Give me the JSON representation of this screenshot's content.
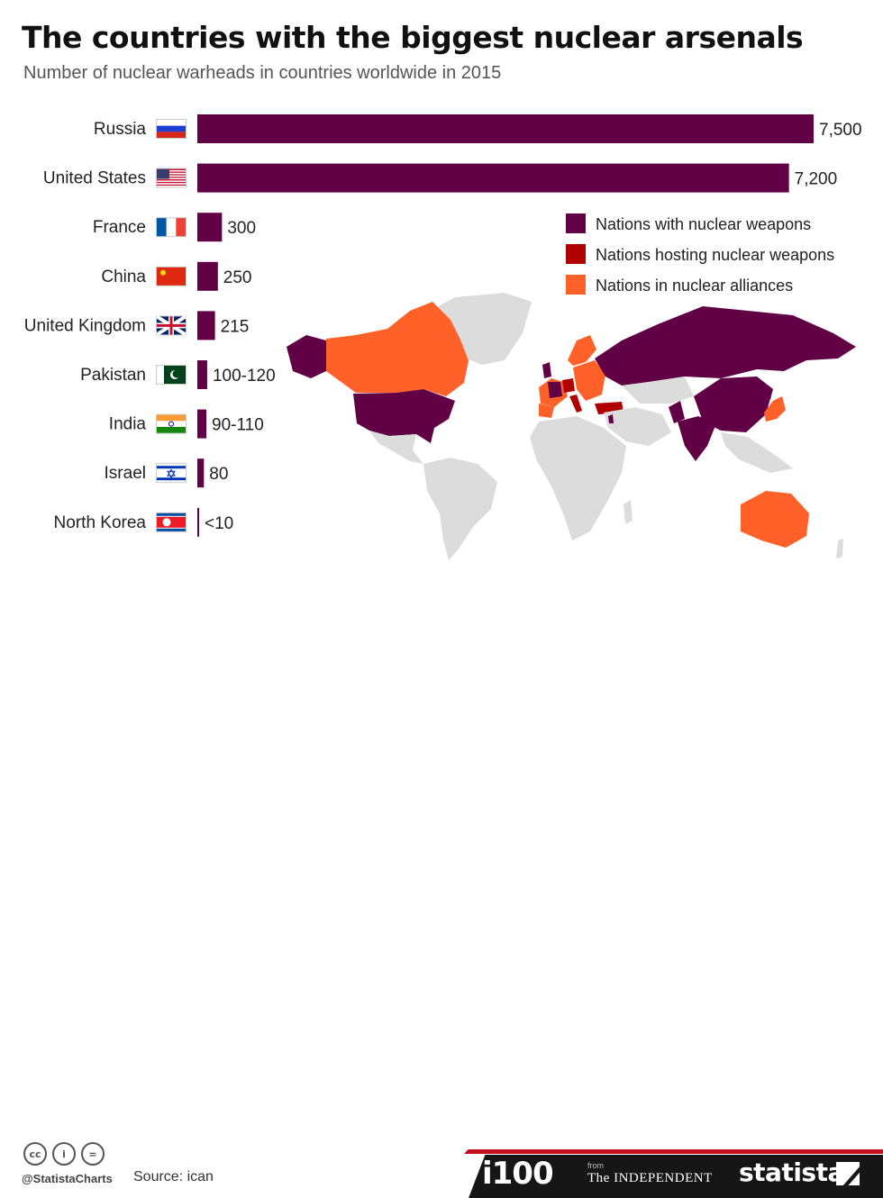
{
  "header": {
    "title": "The countries with the biggest nuclear arsenals",
    "subtitle": "Number of nuclear warheads in countries worldwide in 2015"
  },
  "colors": {
    "bar": "#610045",
    "nuclear": "#610045",
    "hosting": "#b00000",
    "alliance": "#ff6128",
    "neutral_land": "#dcdcdc",
    "accent_red": "#c4101c"
  },
  "chart_data": {
    "type": "bar",
    "orientation": "horizontal",
    "categories": [
      "Russia",
      "United States",
      "France",
      "China",
      "United Kingdom",
      "Pakistan",
      "India",
      "Israel",
      "North Korea"
    ],
    "values": [
      7500,
      7200,
      300,
      250,
      215,
      120,
      110,
      80,
      10
    ],
    "value_labels": [
      "7,500",
      "7,200",
      "300",
      "250",
      "215",
      "100-120",
      "90-110",
      "80",
      "<10"
    ],
    "flags": [
      "russia-flag-icon",
      "usa-flag-icon",
      "france-flag-icon",
      "china-flag-icon",
      "uk-flag-icon",
      "pakistan-flag-icon",
      "india-flag-icon",
      "israel-flag-icon",
      "north-korea-flag-icon"
    ],
    "xlim": [
      0,
      7500
    ],
    "grid": false,
    "legend": {
      "placement": "right",
      "items": [
        {
          "label": "Nations with nuclear weapons",
          "color": "#610045"
        },
        {
          "label": "Nations hosting nuclear weapons",
          "color": "#b00000"
        },
        {
          "label": "Nations in nuclear alliances",
          "color": "#ff6128"
        }
      ]
    }
  },
  "footer": {
    "license_icons": [
      "cc-icon",
      "by-icon",
      "nd-icon"
    ],
    "license_glyphs": [
      "cc",
      "i",
      "="
    ],
    "handle": "@StatistaCharts",
    "source": "Source: ican",
    "i100": "i100",
    "from": "from",
    "independent": "The INDEPENDENT",
    "statista": "statista"
  }
}
